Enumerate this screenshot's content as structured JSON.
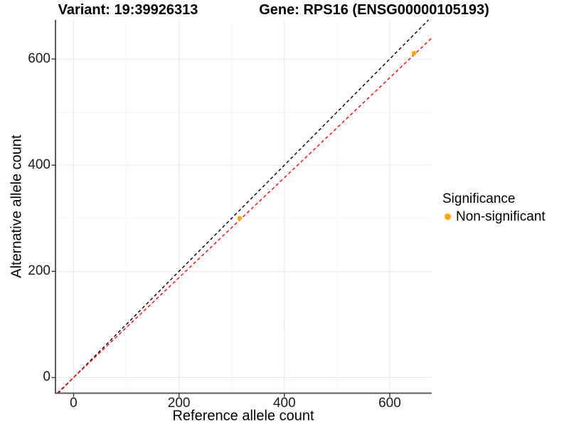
{
  "figure": {
    "kind": "ggplot-scatter",
    "background": "#ffffff"
  },
  "chart_data": {
    "type": "scatter",
    "title_left": "Variant: 19:39926313",
    "title_right": "Gene: RPS16 (ENSG00000105193)",
    "xlabel": "Reference allele count",
    "ylabel": "Alternative allele count",
    "xlim": [
      -34.4,
      679.7
    ],
    "ylim": [
      -29.5,
      673.6
    ],
    "x_major_ticks": [
      0,
      200,
      400,
      600
    ],
    "y_major_ticks": [
      0,
      200,
      400,
      600
    ],
    "x_minor_ticks": [
      100,
      300,
      500
    ],
    "y_minor_ticks": [
      100,
      300,
      500
    ],
    "grid": true,
    "points": [
      {
        "x": 315,
        "y": 300,
        "series": "Non-significant"
      },
      {
        "x": 646,
        "y": 611,
        "series": "Non-significant"
      }
    ],
    "lines": [
      {
        "name": "identity-line",
        "slope": 1.0,
        "intercept": 0,
        "color": "#000000",
        "style": "dashed"
      },
      {
        "name": "fit-line",
        "slope": 0.941,
        "intercept": 0,
        "color": "#FF0000",
        "style": "dashed"
      }
    ],
    "legend": {
      "title": "Significance",
      "position": "right",
      "items": [
        {
          "label": "Non-significant",
          "color": "#FFA500"
        }
      ]
    },
    "colors": {
      "point": "#FFA500",
      "grid_major": "#E8E8E8",
      "grid_minor": "#F4F4F4",
      "axis_line": "#5B5B5B",
      "tick": "#333333",
      "text": "#000000"
    }
  }
}
